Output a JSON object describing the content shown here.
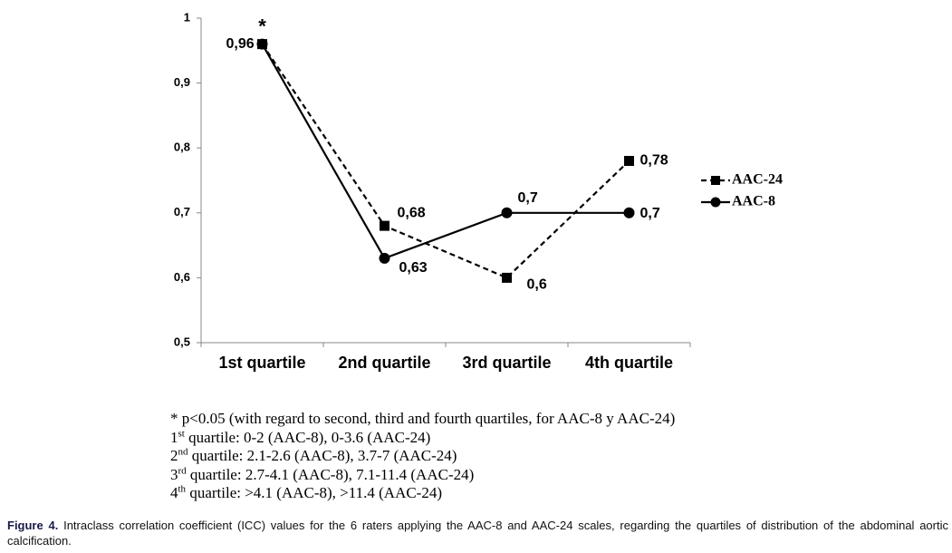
{
  "chart_data": {
    "type": "line",
    "categories": [
      "1st quartile",
      "2nd quartile",
      "3rd quartile",
      "4th quartile"
    ],
    "series": [
      {
        "name": "AAC-24",
        "color": "#000000",
        "line_style": "dashed",
        "marker": "square",
        "values": [
          0.96,
          0.68,
          0.6,
          0.78
        ],
        "value_labels": [
          "0,96",
          "0,68",
          "0,6",
          "0,78"
        ]
      },
      {
        "name": "AAC-8",
        "color": "#000000",
        "line_style": "solid",
        "marker": "circle",
        "values": [
          0.96,
          0.63,
          0.7,
          0.7
        ],
        "value_labels": [
          null,
          "0,63",
          "0,7",
          "0,7"
        ]
      }
    ],
    "ylim": [
      0.5,
      1
    ],
    "yticks": [
      {
        "value": 0.5,
        "label": "0,5"
      },
      {
        "value": 0.6,
        "label": "0,6"
      },
      {
        "value": 0.7,
        "label": "0,7"
      },
      {
        "value": 0.8,
        "label": "0,8"
      },
      {
        "value": 0.9,
        "label": "0,9"
      },
      1
    ],
    "annotation": "*",
    "legend": "right",
    "grid": false
  },
  "footnotes": {
    "significance": "* p<0.05 (with regard to second, third and fourth quartiles, for AAC-8 y AAC-24)",
    "quartiles": [
      {
        "num": "1",
        "sup": "st",
        "text": " quartile: 0-2 (AAC-8), 0-3.6 (AAC-24)"
      },
      {
        "num": "2",
        "sup": "nd",
        "text": " quartile: 2.1-2.6 (AAC-8), 3.7-7 (AAC-24)"
      },
      {
        "num": "3",
        "sup": "rd",
        "text": " quartile: 2.7-4.1 (AAC-8), 7.1-11.4 (AAC-24)"
      },
      {
        "num": "4",
        "sup": "th",
        "text": " quartile: >4.1 (AAC-8), >11.4 (AAC-24)"
      }
    ]
  },
  "caption": {
    "label": "Figure 4.",
    "text": "Intraclass correlation coefficient (ICC) values for the 6 raters applying the AAC-8 and AAC-24 scales, regarding the quartiles of distribution of the abdominal aortic calcification."
  }
}
